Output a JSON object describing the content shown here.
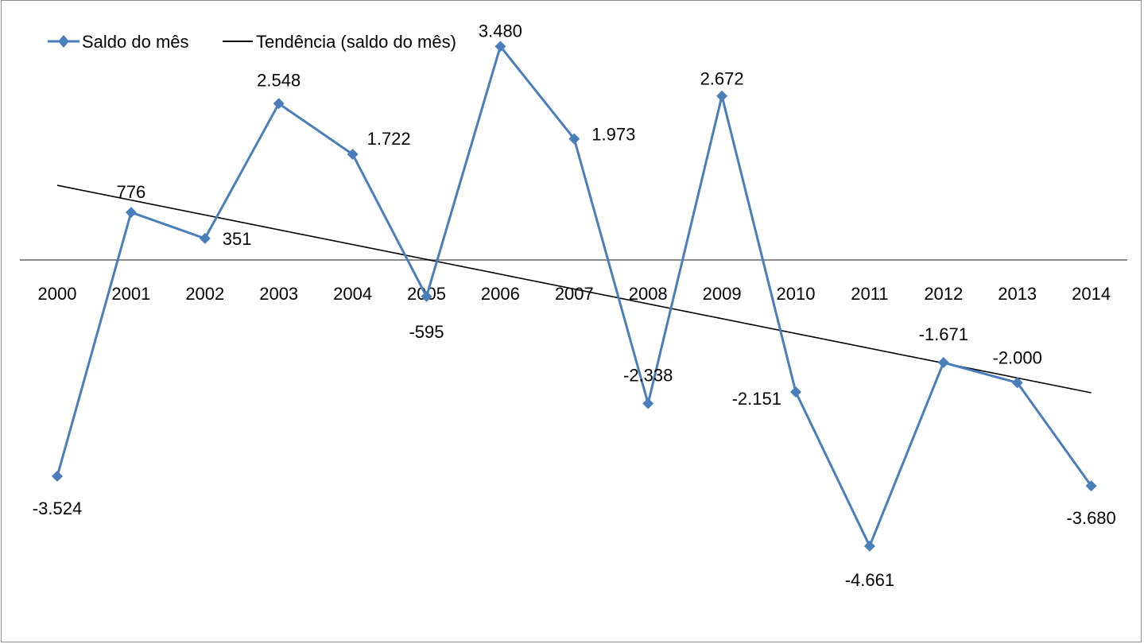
{
  "chart_data": {
    "type": "line",
    "categories": [
      "2000",
      "2001",
      "2002",
      "2003",
      "2004",
      "2005",
      "2006",
      "2007",
      "2008",
      "2009",
      "2010",
      "2011",
      "2012",
      "2013",
      "2014"
    ],
    "series": [
      {
        "name": "Saldo do mês",
        "values": [
          -3524,
          776,
          351,
          2548,
          1722,
          -595,
          3480,
          1973,
          -2338,
          2672,
          -2151,
          -4661,
          -1671,
          -2000,
          -3680
        ],
        "labels": [
          "-3.524",
          "776",
          "351",
          "2.548",
          "1.722",
          "-595",
          "3.480",
          "1.973",
          "-2.338",
          "2.672",
          "-2.151",
          "-4.661",
          "-1.671",
          "-2.000",
          "-3.680"
        ],
        "color": "#4a7ebb",
        "marker": "diamond"
      },
      {
        "name": "Tendência (saldo do mês)",
        "kind": "linear-trendline",
        "color": "#000000"
      }
    ],
    "legend_position": "top-left",
    "x_axis_position": "at zero",
    "y_axis_visible": false,
    "grid": false
  }
}
